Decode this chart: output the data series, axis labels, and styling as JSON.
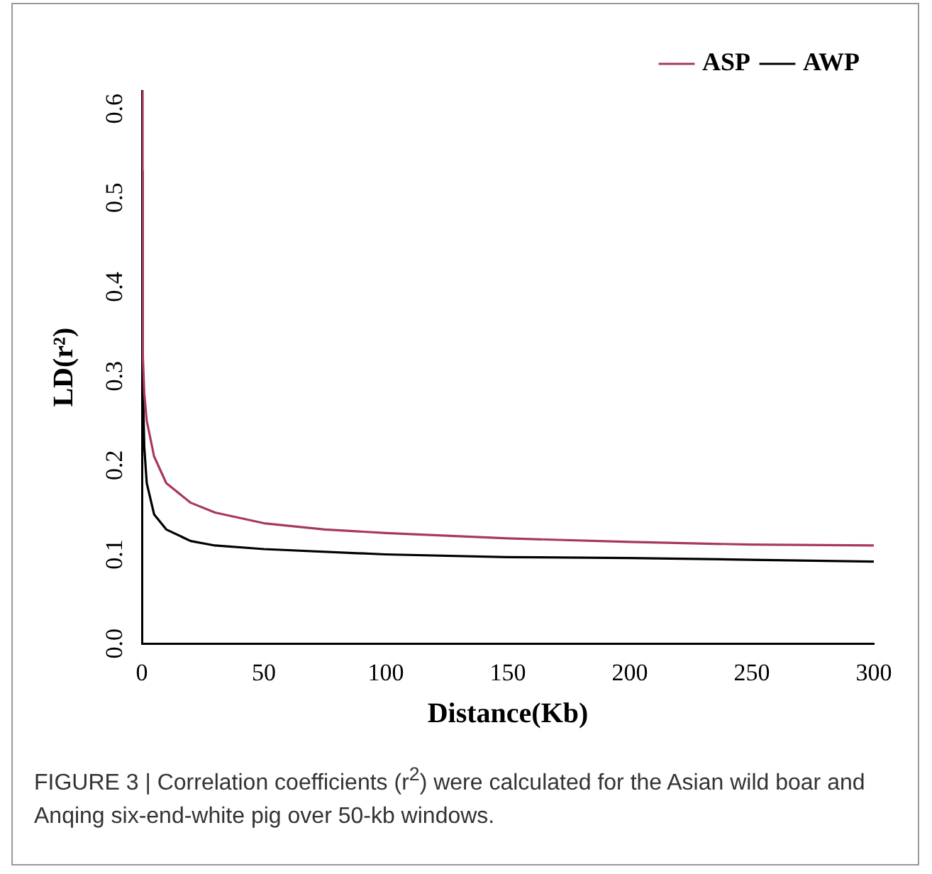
{
  "chart_data": {
    "type": "line",
    "xlabel": "Distance(Kb)",
    "ylabel": "LD(r²)",
    "xlim": [
      0,
      300
    ],
    "xticks": [
      0,
      50,
      100,
      150,
      200,
      250,
      300
    ],
    "ylim": [
      0,
      0.62
    ],
    "yticks": [
      {
        "value": 0,
        "label": "0.0"
      },
      0.1,
      0.2,
      0.3,
      0.4,
      0.5,
      0.6
    ],
    "grid": false,
    "legend": "top right",
    "marker": "none",
    "line_style": "solid",
    "series": [
      {
        "name": "ASP",
        "color": "#a8385e",
        "x": [
          0,
          0.3,
          1,
          2,
          5,
          10,
          20,
          30,
          50,
          75,
          100,
          150,
          200,
          250,
          300
        ],
        "values": [
          0.62,
          0.33,
          0.28,
          0.25,
          0.21,
          0.18,
          0.158,
          0.147,
          0.135,
          0.128,
          0.124,
          0.118,
          0.114,
          0.111,
          0.11
        ]
      },
      {
        "name": "AWP",
        "color": "#000000",
        "x": [
          0,
          0.3,
          1,
          2,
          5,
          10,
          20,
          30,
          50,
          100,
          150,
          200,
          250,
          300
        ],
        "values": [
          0.53,
          0.3,
          0.22,
          0.18,
          0.145,
          0.128,
          0.115,
          0.11,
          0.106,
          0.1,
          0.097,
          0.096,
          0.094,
          0.092
        ]
      }
    ],
    "annotations": [
      "FIGURE 3 | Correlation coefficients (r$^{2}$) were calculated for the Asian wild boar and Anqing six-end-white pig over 50-kb windows."
    ]
  }
}
